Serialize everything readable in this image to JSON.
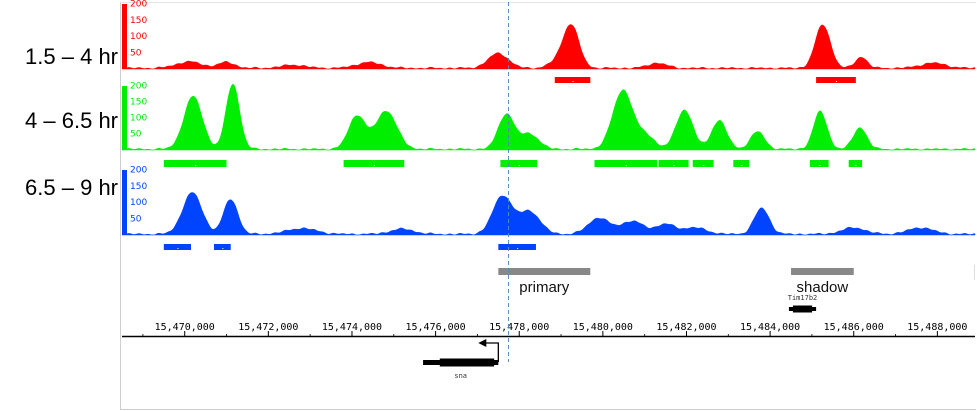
{
  "track_labels": [
    "1.5 – 4 hr",
    "4 – 6.5 hr",
    "6.5 – 9 hr"
  ],
  "chart_data": {
    "type": "area",
    "title": "",
    "xlabel": "",
    "ylabel": "",
    "xlim": [
      15468500,
      15488900
    ],
    "ylim": [
      0,
      200
    ],
    "y_ticks": [
      50,
      100,
      150,
      200
    ],
    "x_ticks": [
      15470000,
      15472000,
      15474000,
      15476000,
      15478000,
      15480000,
      15482000,
      15484000,
      15486000,
      15488000
    ],
    "x_tick_labels": [
      "15,470,000",
      "15,472,000",
      "15,474,000",
      "15,476,000",
      "15,478,000",
      "15,480,000",
      "15,482,000",
      "15,484,000",
      "15,486,000",
      "15,488,000"
    ],
    "cursor_x": 15477745,
    "series": [
      {
        "name": "1.5 – 4 hr",
        "color": "#ff0000",
        "peaks": [
          {
            "x": 15470100,
            "w": 300,
            "h": 20
          },
          {
            "x": 15471000,
            "w": 200,
            "h": 18
          },
          {
            "x": 15472600,
            "w": 280,
            "h": 10
          },
          {
            "x": 15474400,
            "w": 300,
            "h": 18
          },
          {
            "x": 15477500,
            "w": 240,
            "h": 46
          },
          {
            "x": 15478900,
            "w": 200,
            "h": 18
          },
          {
            "x": 15479240,
            "w": 190,
            "h": 132
          },
          {
            "x": 15481300,
            "w": 220,
            "h": 16
          },
          {
            "x": 15485260,
            "w": 180,
            "h": 134
          },
          {
            "x": 15486180,
            "w": 140,
            "h": 35
          },
          {
            "x": 15487900,
            "w": 300,
            "h": 16
          }
        ],
        "domains": [
          [
            15478850,
            15479700
          ],
          [
            15485100,
            15486050
          ]
        ]
      },
      {
        "name": "4 – 6.5 hr",
        "color": "#00ee00",
        "peaks": [
          {
            "x": 15470200,
            "w": 220,
            "h": 165
          },
          {
            "x": 15471150,
            "w": 160,
            "h": 205
          },
          {
            "x": 15474120,
            "w": 200,
            "h": 105
          },
          {
            "x": 15474820,
            "w": 250,
            "h": 120
          },
          {
            "x": 15477690,
            "w": 190,
            "h": 110
          },
          {
            "x": 15478250,
            "w": 220,
            "h": 48
          },
          {
            "x": 15480480,
            "w": 240,
            "h": 185
          },
          {
            "x": 15481050,
            "w": 200,
            "h": 40
          },
          {
            "x": 15481950,
            "w": 200,
            "h": 123
          },
          {
            "x": 15482780,
            "w": 180,
            "h": 90
          },
          {
            "x": 15483700,
            "w": 170,
            "h": 55
          },
          {
            "x": 15485200,
            "w": 160,
            "h": 118
          },
          {
            "x": 15486150,
            "w": 160,
            "h": 68
          }
        ],
        "domains": [
          [
            15469500,
            15471000
          ],
          [
            15473800,
            15475250
          ],
          [
            15477550,
            15478430
          ],
          [
            15479800,
            15481300
          ],
          [
            15481330,
            15482050
          ],
          [
            15482150,
            15482650
          ],
          [
            15483120,
            15483500
          ],
          [
            15484950,
            15485400
          ],
          [
            15485880,
            15486200
          ]
        ]
      },
      {
        "name": "6.5 – 9 hr",
        "color": "#0044ff",
        "peaks": [
          {
            "x": 15470180,
            "w": 230,
            "h": 128
          },
          {
            "x": 15471100,
            "w": 170,
            "h": 108
          },
          {
            "x": 15472800,
            "w": 350,
            "h": 18
          },
          {
            "x": 15475200,
            "w": 280,
            "h": 16
          },
          {
            "x": 15477600,
            "w": 230,
            "h": 118
          },
          {
            "x": 15478250,
            "w": 250,
            "h": 70
          },
          {
            "x": 15479900,
            "w": 250,
            "h": 50
          },
          {
            "x": 15480700,
            "w": 280,
            "h": 40
          },
          {
            "x": 15481500,
            "w": 230,
            "h": 30
          },
          {
            "x": 15482200,
            "w": 280,
            "h": 20
          },
          {
            "x": 15483800,
            "w": 180,
            "h": 80
          },
          {
            "x": 15486000,
            "w": 280,
            "h": 20
          },
          {
            "x": 15487600,
            "w": 300,
            "h": 20
          }
        ],
        "domains": [
          [
            15469500,
            15470150
          ],
          [
            15470700,
            15471100
          ],
          [
            15477500,
            15478400
          ]
        ]
      }
    ],
    "enhancers": [
      {
        "label": "primary",
        "start": 15477500,
        "end": 15479700
      },
      {
        "label": "shadow",
        "start": 15484500,
        "end": 15486000
      }
    ],
    "genes": [
      {
        "label": "sna",
        "start": 15475700,
        "end": 15477500,
        "strand": "-",
        "tss": 15477500
      },
      {
        "label": "Tim17b2",
        "start": 15484450,
        "end": 15485100,
        "strand": "+"
      }
    ]
  }
}
